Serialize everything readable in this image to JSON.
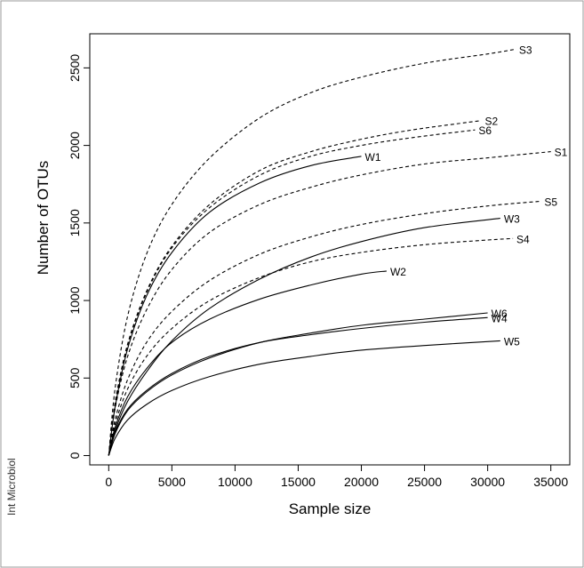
{
  "figure": {
    "side_label": "Int Microbiol"
  },
  "chart_data": {
    "type": "line",
    "title": "",
    "xlabel": "Sample size",
    "ylabel": "Number of OTUs",
    "xlim": [
      -1500,
      36500
    ],
    "ylim": [
      -60,
      2720
    ],
    "xticks": [
      0,
      5000,
      10000,
      15000,
      20000,
      25000,
      30000,
      35000
    ],
    "yticks": [
      0,
      500,
      1000,
      1500,
      2000,
      2500
    ],
    "grid": false,
    "legend": "none (curve labels at line ends)",
    "series": [
      {
        "name": "S3",
        "style": "dashed",
        "x": [
          0,
          500,
          1500,
          3000,
          5000,
          8000,
          12000,
          16000,
          20000,
          25000,
          30000,
          32200
        ],
        "y": [
          0,
          430,
          900,
          1300,
          1620,
          1920,
          2180,
          2340,
          2440,
          2530,
          2590,
          2620
        ]
      },
      {
        "name": "S2",
        "style": "dashed",
        "x": [
          0,
          500,
          1500,
          3000,
          5000,
          8000,
          12000,
          16000,
          20000,
          24000,
          29500
        ],
        "y": [
          0,
          340,
          720,
          1060,
          1350,
          1620,
          1840,
          1960,
          2040,
          2100,
          2160
        ]
      },
      {
        "name": "S6",
        "style": "dashed",
        "x": [
          0,
          500,
          1500,
          3000,
          5000,
          8000,
          12000,
          16000,
          20000,
          24000,
          29000
        ],
        "y": [
          0,
          330,
          710,
          1050,
          1340,
          1600,
          1810,
          1930,
          2000,
          2050,
          2100
        ]
      },
      {
        "name": "S1",
        "style": "dashed",
        "x": [
          0,
          500,
          1500,
          3000,
          5000,
          8000,
          12000,
          16000,
          20000,
          25000,
          30000,
          35000
        ],
        "y": [
          0,
          300,
          640,
          940,
          1200,
          1440,
          1620,
          1730,
          1810,
          1880,
          1920,
          1960
        ]
      },
      {
        "name": "S5",
        "style": "dashed",
        "x": [
          0,
          500,
          1500,
          3000,
          5000,
          8000,
          12000,
          16000,
          20000,
          25000,
          30000,
          34200
        ],
        "y": [
          0,
          230,
          490,
          730,
          930,
          1130,
          1300,
          1410,
          1490,
          1560,
          1610,
          1640
        ]
      },
      {
        "name": "S4",
        "style": "dashed",
        "x": [
          0,
          500,
          1500,
          3000,
          5000,
          8000,
          12000,
          16000,
          20000,
          25000,
          30000,
          32000
        ],
        "y": [
          0,
          200,
          430,
          640,
          820,
          1000,
          1150,
          1250,
          1310,
          1360,
          1390,
          1400
        ]
      },
      {
        "name": "W1",
        "style": "solid",
        "x": [
          0,
          500,
          1500,
          3000,
          5000,
          8000,
          12000,
          16000,
          20000
        ],
        "y": [
          0,
          310,
          690,
          1030,
          1310,
          1570,
          1760,
          1870,
          1930
        ]
      },
      {
        "name": "W3",
        "style": "solid",
        "x": [
          0,
          500,
          1500,
          3000,
          5000,
          8000,
          12000,
          16000,
          20000,
          25000,
          31000
        ],
        "y": [
          0,
          160,
          350,
          540,
          740,
          950,
          1140,
          1280,
          1380,
          1470,
          1530
        ]
      },
      {
        "name": "W2",
        "style": "solid",
        "x": [
          0,
          500,
          1500,
          3000,
          5000,
          8000,
          12000,
          16000,
          20000,
          22000
        ],
        "y": [
          0,
          180,
          380,
          560,
          730,
          880,
          1010,
          1100,
          1170,
          1190
        ]
      },
      {
        "name": "W6",
        "style": "solid",
        "x": [
          0,
          500,
          1500,
          3000,
          5000,
          8000,
          12000,
          16000,
          20000,
          25000,
          30000
        ],
        "y": [
          0,
          140,
          290,
          410,
          520,
          630,
          730,
          790,
          840,
          880,
          920
        ]
      },
      {
        "name": "W4",
        "style": "solid",
        "x": [
          0,
          500,
          1500,
          3000,
          5000,
          8000,
          12000,
          16000,
          20000,
          25000,
          30000
        ],
        "y": [
          0,
          150,
          300,
          420,
          530,
          640,
          730,
          780,
          820,
          860,
          890
        ]
      },
      {
        "name": "W5",
        "style": "solid",
        "x": [
          0,
          500,
          1500,
          3000,
          5000,
          8000,
          12000,
          16000,
          20000,
          25000,
          31000
        ],
        "y": [
          0,
          110,
          230,
          330,
          420,
          510,
          590,
          640,
          680,
          710,
          740
        ]
      }
    ]
  }
}
